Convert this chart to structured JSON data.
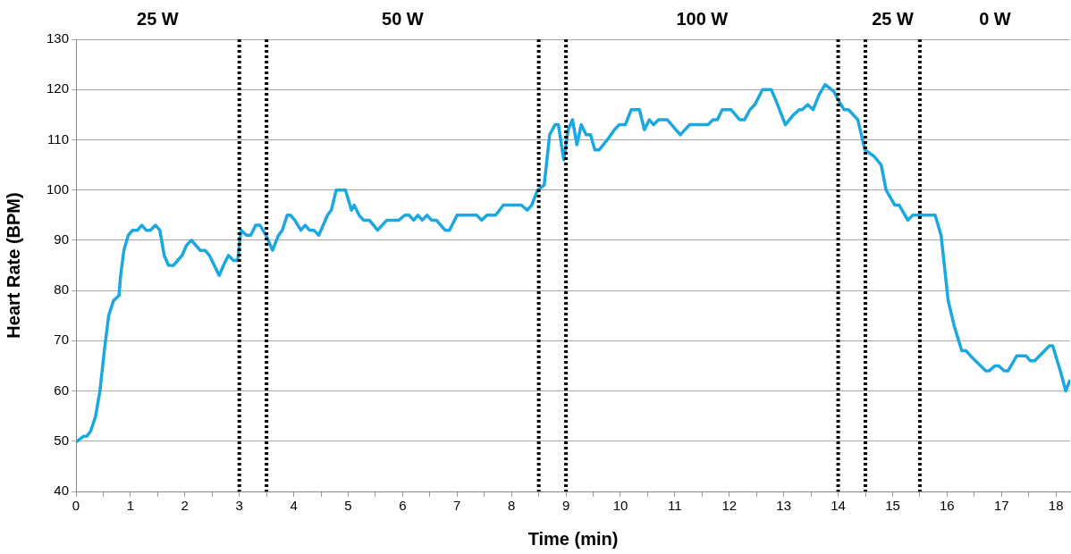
{
  "chart_data": {
    "type": "line",
    "xlabel": "Time (min)",
    "ylabel": "Heart Rate (BPM)",
    "xlim": [
      0,
      18.26
    ],
    "ylim": [
      40,
      130
    ],
    "xticks": [
      0,
      {
        "value": 0.5,
        "label": null
      },
      1,
      {
        "value": 1.5,
        "label": null
      },
      2,
      {
        "value": 2.5,
        "label": null
      },
      3,
      {
        "value": 3.5,
        "label": null
      },
      4,
      {
        "value": 4.5,
        "label": null
      },
      5,
      {
        "value": 5.5,
        "label": null
      },
      6,
      {
        "value": 6.5,
        "label": null
      },
      7,
      {
        "value": 7.5,
        "label": null
      },
      8,
      {
        "value": 8.5,
        "label": null
      },
      9,
      {
        "value": 9.5,
        "label": null
      },
      10,
      {
        "value": 10.5,
        "label": null
      },
      11,
      {
        "value": 11.5,
        "label": null
      },
      12,
      {
        "value": 12.5,
        "label": null
      },
      13,
      {
        "value": 13.5,
        "label": null
      },
      14,
      {
        "value": 14.5,
        "label": null
      },
      15,
      {
        "value": 15.5,
        "label": null
      },
      16,
      {
        "value": 16.5,
        "label": null
      },
      17,
      {
        "value": 17.5,
        "label": null
      },
      18
    ],
    "yticks": [
      40,
      50,
      60,
      70,
      80,
      90,
      100,
      110,
      120,
      130
    ],
    "grid": "y",
    "series": [
      {
        "color": "#1ba8e0",
        "x": [
          0.02,
          0.14,
          0.2,
          0.27,
          0.36,
          0.44,
          0.52,
          0.6,
          0.69,
          0.79,
          0.82,
          0.88,
          0.96,
          1.04,
          1.13,
          1.21,
          1.29,
          1.37,
          1.46,
          1.54,
          1.62,
          1.7,
          1.79,
          1.95,
          2.03,
          2.12,
          2.2,
          2.28,
          2.37,
          2.45,
          2.54,
          2.63,
          2.71,
          2.8,
          2.89,
          2.97,
          3.03,
          3.13,
          3.21,
          3.3,
          3.38,
          3.49,
          3.61,
          3.72,
          3.79,
          3.88,
          3.94,
          4.02,
          4.13,
          4.21,
          4.29,
          4.37,
          4.46,
          4.54,
          4.62,
          4.69,
          4.78,
          4.95,
          5.06,
          5.11,
          5.2,
          5.28,
          5.39,
          5.54,
          5.71,
          5.93,
          6.04,
          6.12,
          6.2,
          6.28,
          6.36,
          6.45,
          6.53,
          6.62,
          6.78,
          6.86,
          7.0,
          7.36,
          7.45,
          7.55,
          7.71,
          7.85,
          8.18,
          8.29,
          8.37,
          8.48,
          8.6,
          8.7,
          8.8,
          8.86,
          8.96,
          9.04,
          9.12,
          9.2,
          9.28,
          9.37,
          9.45,
          9.53,
          9.61,
          9.76,
          9.89,
          9.98,
          10.09,
          10.2,
          10.35,
          10.44,
          10.53,
          10.61,
          10.7,
          10.86,
          11.1,
          11.27,
          11.61,
          11.7,
          11.78,
          11.87,
          12.03,
          12.19,
          12.28,
          12.38,
          12.47,
          12.61,
          12.77,
          12.85,
          13.03,
          13.18,
          13.29,
          13.34,
          13.44,
          13.54,
          13.65,
          13.76,
          13.92,
          14.03,
          14.11,
          14.19,
          14.36,
          14.49,
          14.66,
          14.79,
          14.88,
          15.04,
          15.12,
          15.28,
          15.37,
          15.78,
          15.89,
          16.02,
          16.13,
          16.27,
          16.35,
          16.43,
          16.71,
          16.77,
          16.88,
          16.95,
          17.05,
          17.12,
          17.28,
          17.45,
          17.53,
          17.61,
          17.88,
          17.94,
          18.08,
          18.18,
          18.25
        ],
        "values": [
          50,
          51,
          51,
          52,
          55,
          60,
          68,
          75,
          78,
          79,
          83,
          88,
          91,
          92,
          92,
          93,
          92,
          92,
          93,
          92,
          87,
          85,
          85,
          87,
          89,
          90,
          89,
          88,
          88,
          87,
          85,
          83,
          85,
          87,
          86,
          86,
          92,
          91,
          91,
          93,
          93,
          91,
          88,
          91,
          92,
          95,
          95,
          94,
          92,
          93,
          92,
          92,
          91,
          93,
          95,
          96,
          100,
          100,
          96,
          97,
          95,
          94,
          94,
          92,
          94,
          94,
          95,
          95,
          94,
          95,
          94,
          95,
          94,
          94,
          92,
          92,
          95,
          95,
          94,
          95,
          95,
          97,
          97,
          96,
          97,
          100,
          101,
          111,
          113,
          113,
          106,
          112,
          114,
          109,
          113,
          111,
          111,
          108,
          108,
          110,
          112,
          113,
          113,
          116,
          116,
          112,
          114,
          113,
          114,
          114,
          111,
          113,
          113,
          114,
          114,
          116,
          116,
          114,
          114,
          116,
          117,
          120,
          120,
          118,
          113,
          115,
          116,
          116,
          117,
          116,
          119,
          121,
          119.6,
          117.4,
          116,
          116,
          114,
          108,
          106.7,
          105,
          100,
          97,
          97,
          94,
          95,
          95,
          91,
          78,
          73,
          68,
          68,
          67,
          64,
          64,
          65,
          65,
          64,
          64,
          67,
          67,
          66,
          66,
          69,
          69,
          64,
          60,
          62
        ]
      }
    ],
    "ref_lines": [
      {
        "axis": "x",
        "value": 3,
        "color": "#000000",
        "line_style": "dotted"
      },
      {
        "axis": "x",
        "value": 3.5,
        "color": "#000000",
        "line_style": "dotted"
      },
      {
        "axis": "x",
        "value": 8.5,
        "color": "#000000",
        "line_style": "dotted"
      },
      {
        "axis": "x",
        "value": 9,
        "color": "#000000",
        "line_style": "dotted"
      },
      {
        "axis": "x",
        "value": 14,
        "color": "#000000",
        "line_style": "dotted"
      },
      {
        "axis": "x",
        "value": 14.5,
        "color": "#000000",
        "line_style": "dotted"
      },
      {
        "axis": "x",
        "value": 15.5,
        "color": "#000000",
        "line_style": "dotted"
      }
    ],
    "annotations": [
      "25 W",
      "50 W",
      "100 W",
      "25 W",
      "0 W"
    ]
  }
}
